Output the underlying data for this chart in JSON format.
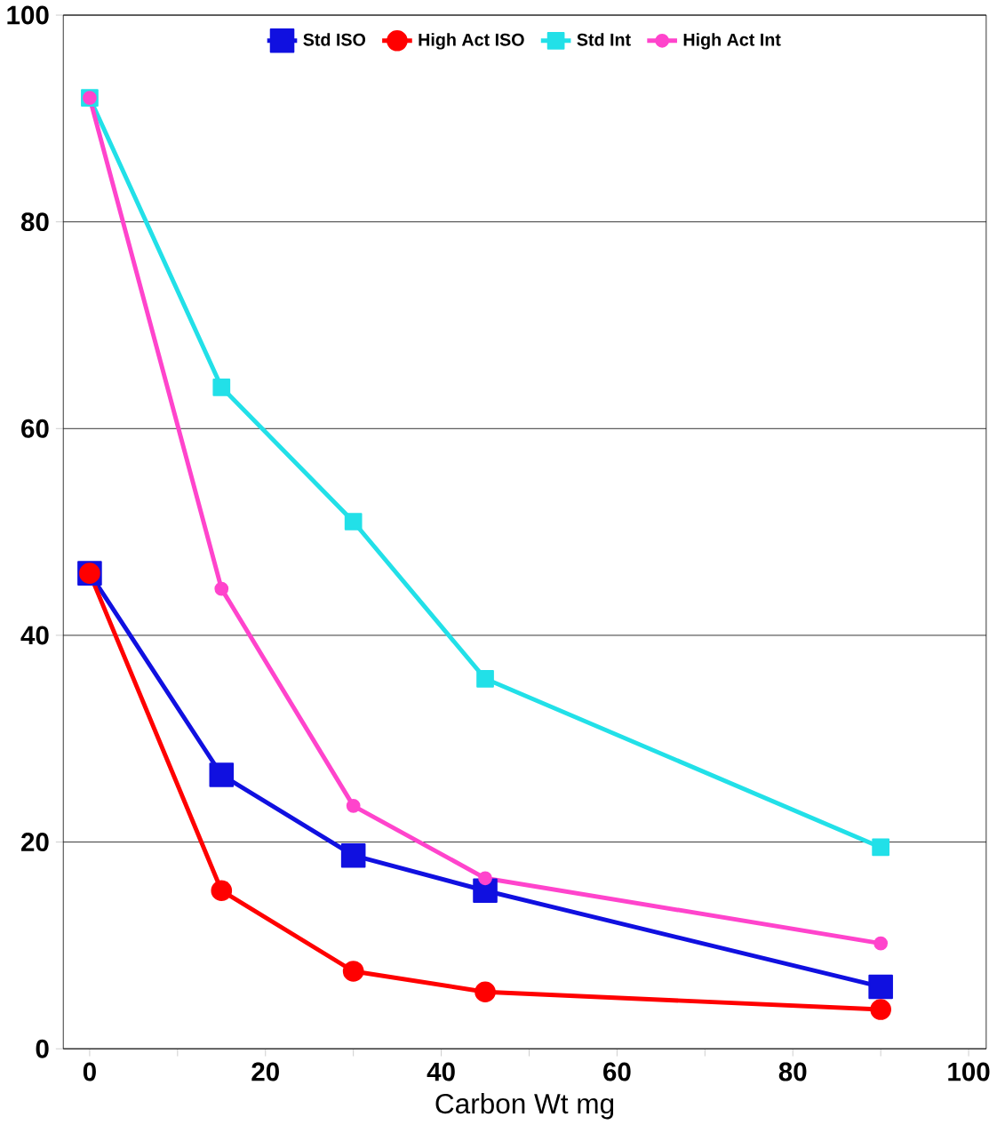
{
  "chart_data": {
    "type": "line",
    "xlabel": "Carbon Wt mg",
    "x": [
      0,
      15,
      30,
      45,
      90
    ],
    "series": [
      {
        "name": "Std ISO",
        "color": "#1010e0",
        "marker": "square",
        "values": [
          46,
          26.5,
          18.7,
          15.3,
          6
        ]
      },
      {
        "name": "High Act ISO",
        "color": "#ff0000",
        "marker": "circle",
        "values": [
          46,
          15.3,
          7.5,
          5.5,
          3.8
        ]
      },
      {
        "name": "Std Int",
        "color": "#22e0e8",
        "marker": "square",
        "values": [
          92,
          64,
          51,
          35.8,
          19.5
        ]
      },
      {
        "name": "High Act Int",
        "color": "#ff44cc",
        "marker": "circle",
        "values": [
          92,
          44.5,
          23.5,
          16.5,
          10.2
        ]
      }
    ],
    "xlim": [
      -3,
      102
    ],
    "ylim": [
      0,
      100
    ],
    "xticks": [
      0,
      {
        "value": 10,
        "label": null
      },
      20,
      {
        "value": 30,
        "label": null
      },
      40,
      {
        "value": 50,
        "label": null
      },
      60,
      {
        "value": 70,
        "label": null
      },
      80,
      {
        "value": 90,
        "label": null
      },
      100
    ],
    "yticks": [
      0,
      20,
      40,
      60,
      80,
      100
    ],
    "grid": "y",
    "legend": "top"
  }
}
